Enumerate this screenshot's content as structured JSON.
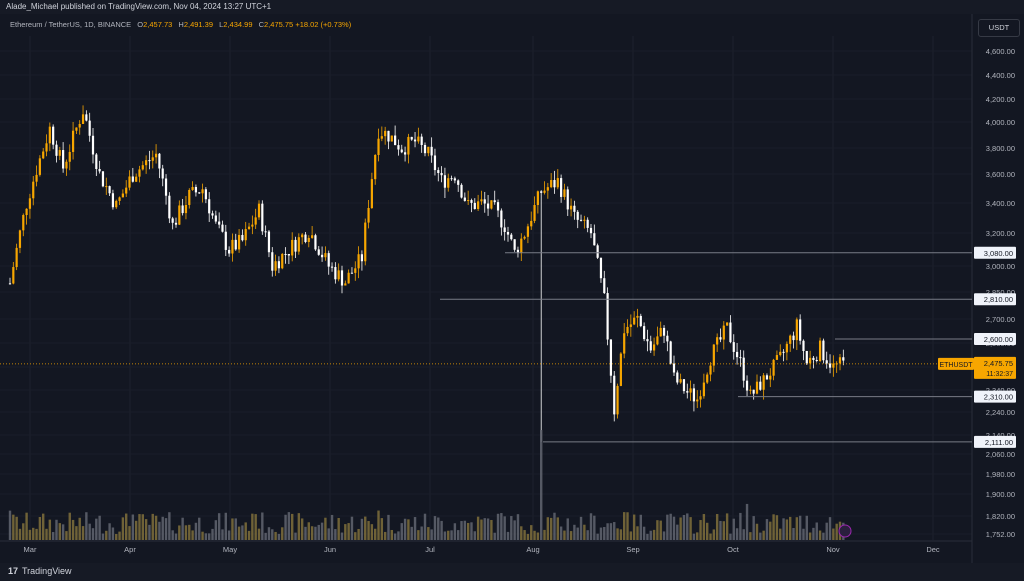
{
  "header": {
    "publisher_text": "Alade_Michael published on TradingView.com, Nov 04, 2024 13:27 UTC+1"
  },
  "legend": {
    "symbol": "Ethereum / TetherUS, 1D, BINANCE",
    "open_label": "O",
    "open": "2,457.73",
    "high_label": "H",
    "high": "2,491.39",
    "low_label": "L",
    "low": "2,434.99",
    "close_label": "C",
    "close": "2,475.75",
    "change": "+18.02 (+0.73%)"
  },
  "currency_button": "USDT",
  "footer": {
    "brand": "TradingView",
    "logo_mark": "17"
  },
  "colors": {
    "up": "#f7a600",
    "down": "#ffffff",
    "background": "#131722",
    "level_line": "#787b86",
    "price_tag": "#f7a600"
  },
  "chart_data": {
    "type": "candlestick",
    "symbol": "ETHUSDT",
    "timeframe": "1D",
    "exchange": "BINANCE",
    "price_axis_ticks": [
      "4,600.00",
      "4,400.00",
      "4,200.00",
      "4,000.00",
      "3,800.00",
      "3,600.00",
      "3,400.00",
      "3,200.00",
      "3,000.00",
      "2,850.00",
      "2,700.00",
      "2,580.00",
      "2,460.00",
      "2,340.00",
      "2,240.00",
      "2,140.00",
      "2,060.00",
      "1,980.00",
      "1,900.00",
      "1,820.00",
      "1,752.00"
    ],
    "time_axis_labels": [
      "Mar",
      "Apr",
      "May",
      "Jun",
      "Jul",
      "Aug",
      "Sep",
      "Oct",
      "Nov",
      "Dec"
    ],
    "horizontal_levels": [
      {
        "price": 3080,
        "label": "3,080.00"
      },
      {
        "price": 2810,
        "label": "2,810.00"
      },
      {
        "price": 2600,
        "label": "2,600.00"
      },
      {
        "price": 2310,
        "label": "2,310.00"
      },
      {
        "price": 2111,
        "label": "2,111.00"
      }
    ],
    "current_price": {
      "symbol_label": "ETHUSDT",
      "price": "2,475.75",
      "countdown": "11:32:37"
    },
    "price_path": [
      [
        0,
        2900
      ],
      [
        5,
        3400
      ],
      [
        12,
        3950
      ],
      [
        16,
        3650
      ],
      [
        22,
        4100
      ],
      [
        27,
        3600
      ],
      [
        32,
        3380
      ],
      [
        37,
        3600
      ],
      [
        44,
        3750
      ],
      [
        49,
        3250
      ],
      [
        54,
        3450
      ],
      [
        58,
        3500
      ],
      [
        62,
        3250
      ],
      [
        66,
        3100
      ],
      [
        70,
        3150
      ],
      [
        75,
        3350
      ],
      [
        79,
        3000
      ],
      [
        85,
        3120
      ],
      [
        90,
        3220
      ],
      [
        96,
        3000
      ],
      [
        101,
        2910
      ],
      [
        106,
        3050
      ],
      [
        111,
        3940
      ],
      [
        114,
        3900
      ],
      [
        118,
        3800
      ],
      [
        122,
        3850
      ],
      [
        126,
        3750
      ],
      [
        130,
        3550
      ],
      [
        134,
        3600
      ],
      [
        138,
        3380
      ],
      [
        142,
        3400
      ],
      [
        146,
        3350
      ],
      [
        149,
        3250
      ],
      [
        152,
        3080
      ],
      [
        155,
        3200
      ],
      [
        160,
        3480
      ],
      [
        165,
        3550
      ],
      [
        170,
        3300
      ],
      [
        175,
        3200
      ],
      [
        179,
        2800
      ],
      [
        182,
        2250
      ],
      [
        185,
        2650
      ],
      [
        189,
        2700
      ],
      [
        193,
        2550
      ],
      [
        197,
        2650
      ],
      [
        200,
        2400
      ],
      [
        204,
        2330
      ],
      [
        207,
        2300
      ],
      [
        211,
        2510
      ],
      [
        216,
        2650
      ],
      [
        220,
        2480
      ],
      [
        223,
        2310
      ],
      [
        227,
        2390
      ],
      [
        232,
        2500
      ],
      [
        237,
        2660
      ],
      [
        240,
        2480
      ],
      [
        244,
        2550
      ],
      [
        248,
        2460
      ],
      [
        251,
        2475
      ]
    ],
    "volume_note": "volume histogram with a spike near early August"
  }
}
